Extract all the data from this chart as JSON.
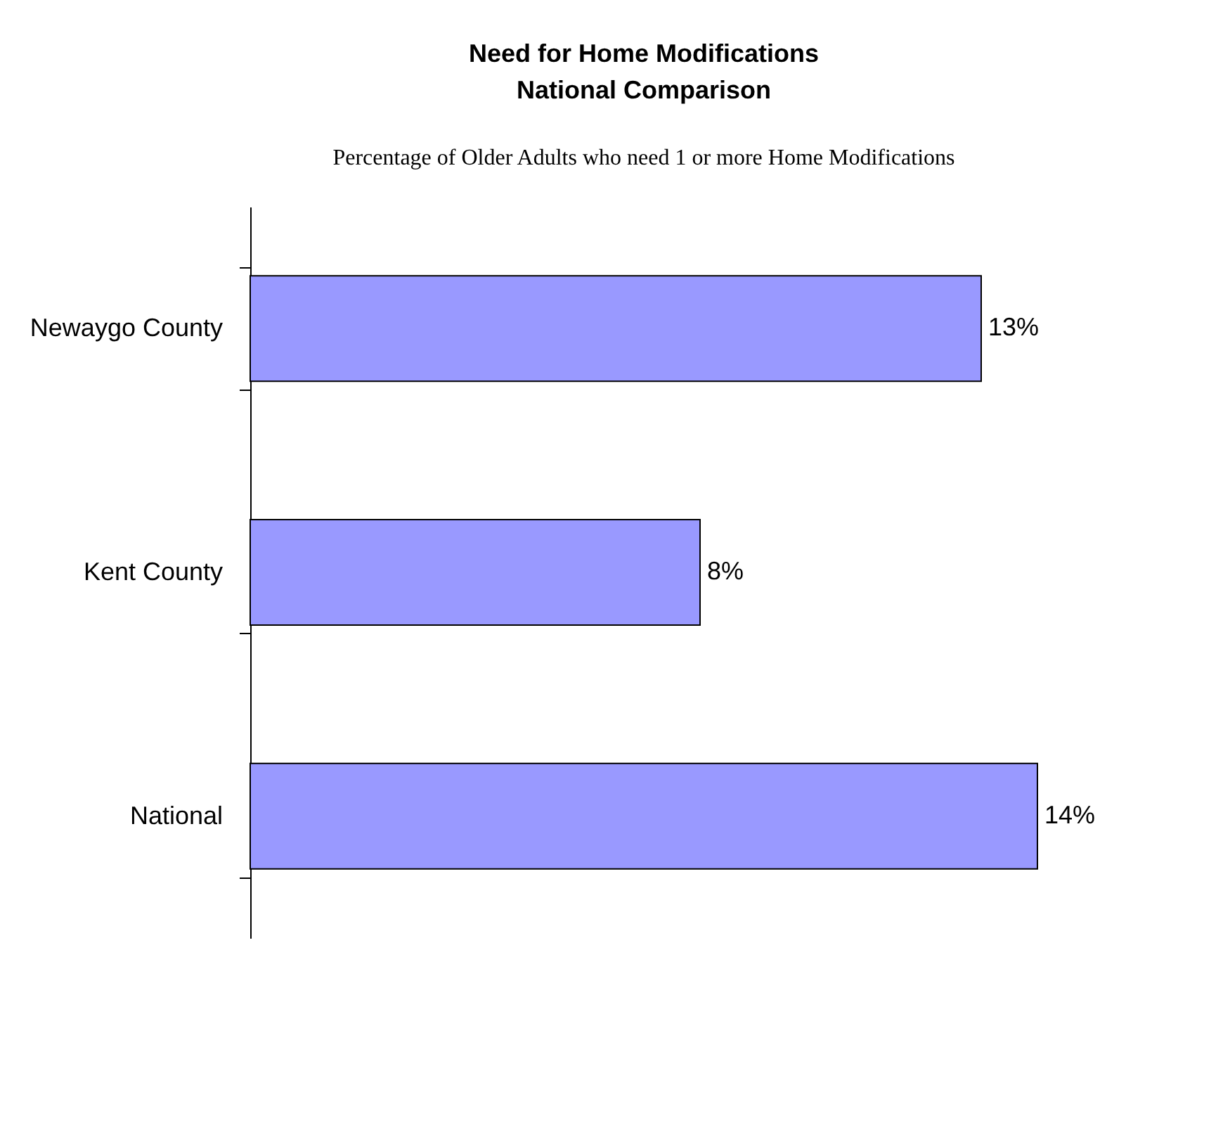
{
  "chart_data": {
    "type": "bar",
    "orientation": "horizontal",
    "title": "Need for Home Modifications\nNational Comparison",
    "subtitle": "Percentage of Older Adults who need 1 or more Home Modifications",
    "categories": [
      "Newaygo County",
      "Kent County",
      "National"
    ],
    "values": [
      13,
      8,
      14
    ],
    "value_labels": [
      "13%",
      "8%",
      "14%"
    ],
    "color": "#9999ff"
  }
}
